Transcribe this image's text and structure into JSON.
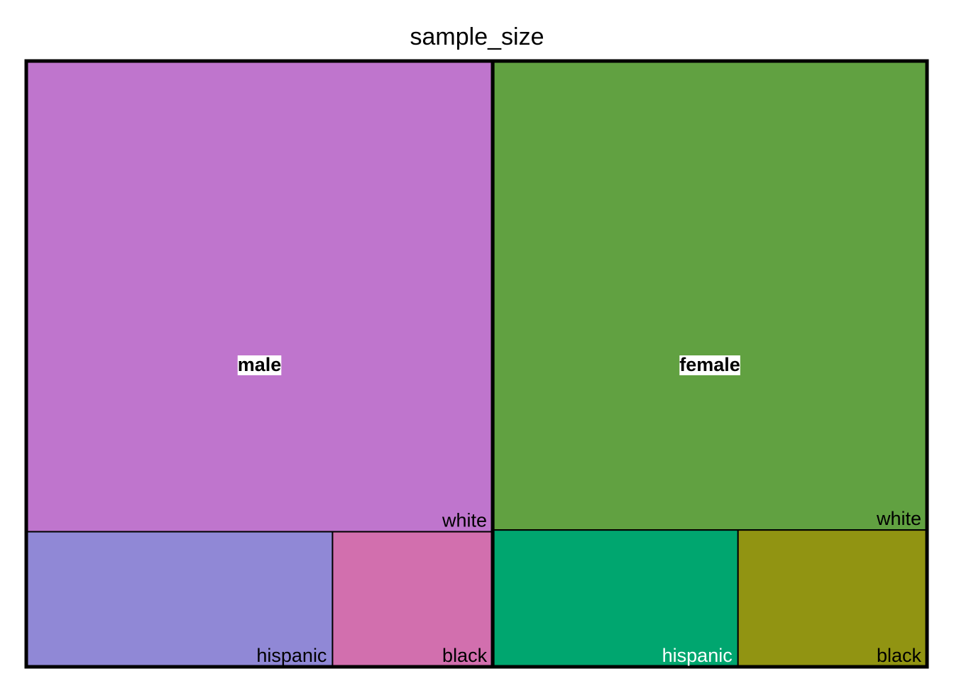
{
  "chart_data": {
    "type": "treemap",
    "title": "sample_size",
    "groups": [
      {
        "name": "male",
        "leaves": [
          {
            "name": "white",
            "value": 2080,
            "color": "#BF75CD",
            "label_color": "#000000"
          },
          {
            "name": "hispanic",
            "value": 392,
            "color": "#9088D6",
            "label_color": "#000000"
          },
          {
            "name": "black",
            "value": 205,
            "color": "#D26FAE",
            "label_color": "#000000"
          }
        ]
      },
      {
        "name": "female",
        "leaves": [
          {
            "name": "white",
            "value": 1930,
            "color": "#61A141",
            "label_color": "#000000"
          },
          {
            "name": "hispanic",
            "value": 318,
            "color": "#00A66F",
            "label_color": "#FFFFFF"
          },
          {
            "name": "black",
            "value": 245,
            "color": "#919412",
            "label_color": "#000000"
          }
        ]
      }
    ]
  }
}
